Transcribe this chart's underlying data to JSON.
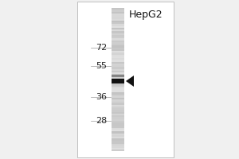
{
  "fig_bg_color": "#f0f0f0",
  "panel_bg_color": "#ffffff",
  "title": "HepG2",
  "title_fontsize": 9,
  "mw_markers": [
    72,
    55,
    36,
    28
  ],
  "mw_fontsize": 8,
  "band_color": "#111111",
  "band2_color": "#555555",
  "arrow_color": "#111111",
  "border_color": "#aaaaaa",
  "lane_bg_color": "#cccccc",
  "lane_smear_color": "#bbbbbb"
}
